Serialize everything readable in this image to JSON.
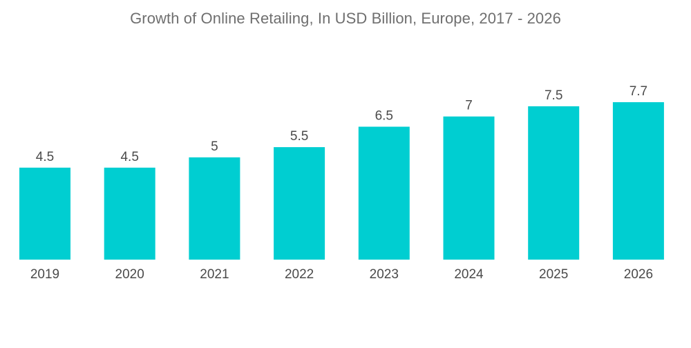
{
  "chart_data": {
    "type": "bar",
    "title": "Growth of Online Retailing, In USD Billion, Europe, 2017 - 2026",
    "xlabel": "",
    "ylabel": "",
    "categories": [
      "2019",
      "2020",
      "2021",
      "2022",
      "2023",
      "2024",
      "2025",
      "2026"
    ],
    "values": [
      4.5,
      4.5,
      5,
      5.5,
      6.5,
      7,
      7.5,
      7.7
    ],
    "value_labels": [
      "4.5",
      "4.5",
      "5",
      "5.5",
      "6.5",
      "7",
      "7.5",
      "7.7"
    ],
    "ylim": [
      0,
      7.7
    ],
    "grid": false,
    "legend": "none",
    "bar_color": "#00CED1"
  }
}
